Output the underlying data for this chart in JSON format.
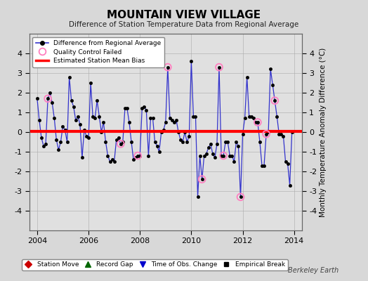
{
  "title": "MOUNTAIN VIEW VILLAGE",
  "subtitle": "Difference of Station Temperature Data from Regional Average",
  "ylabel": "Monthly Temperature Anomaly Difference (°C)",
  "credit": "Berkeley Earth",
  "xlim": [
    2003.7,
    2014.3
  ],
  "ylim": [
    -5,
    5
  ],
  "yticks": [
    -4,
    -3,
    -2,
    -1,
    0,
    1,
    2,
    3,
    4
  ],
  "xticks": [
    2004,
    2006,
    2008,
    2010,
    2012,
    2014
  ],
  "background_color": "#d8d8d8",
  "plot_bg_color": "#e0e0e0",
  "line_color": "#3333cc",
  "marker_color": "#000000",
  "bias_color": "#ff0000",
  "bias_value": 0.05,
  "qc_failed_color": "#ff80c0",
  "data": [
    [
      2004.0,
      1.7
    ],
    [
      2004.083,
      0.6
    ],
    [
      2004.167,
      -0.3
    ],
    [
      2004.25,
      -0.7
    ],
    [
      2004.333,
      -0.6
    ],
    [
      2004.417,
      1.7
    ],
    [
      2004.5,
      2.0
    ],
    [
      2004.583,
      1.5
    ],
    [
      2004.667,
      0.7
    ],
    [
      2004.75,
      -0.4
    ],
    [
      2004.833,
      -0.9
    ],
    [
      2004.917,
      -0.5
    ],
    [
      2005.0,
      0.3
    ],
    [
      2005.083,
      0.1
    ],
    [
      2005.167,
      -0.5
    ],
    [
      2005.25,
      2.8
    ],
    [
      2005.333,
      1.6
    ],
    [
      2005.417,
      1.3
    ],
    [
      2005.5,
      0.6
    ],
    [
      2005.583,
      0.8
    ],
    [
      2005.667,
      0.4
    ],
    [
      2005.75,
      -1.3
    ],
    [
      2005.833,
      0.1
    ],
    [
      2005.917,
      -0.2
    ],
    [
      2006.0,
      -0.3
    ],
    [
      2006.083,
      2.5
    ],
    [
      2006.167,
      0.8
    ],
    [
      2006.25,
      0.7
    ],
    [
      2006.333,
      1.6
    ],
    [
      2006.417,
      0.8
    ],
    [
      2006.5,
      0.0
    ],
    [
      2006.583,
      0.5
    ],
    [
      2006.667,
      -0.5
    ],
    [
      2006.75,
      -1.2
    ],
    [
      2006.833,
      -1.5
    ],
    [
      2006.917,
      -1.4
    ],
    [
      2007.0,
      -1.5
    ],
    [
      2007.083,
      -0.4
    ],
    [
      2007.167,
      -0.3
    ],
    [
      2007.25,
      -0.6
    ],
    [
      2007.333,
      -0.5
    ],
    [
      2007.417,
      1.2
    ],
    [
      2007.5,
      1.2
    ],
    [
      2007.583,
      0.5
    ],
    [
      2007.667,
      -0.5
    ],
    [
      2007.75,
      -1.4
    ],
    [
      2007.833,
      -1.3
    ],
    [
      2007.917,
      -1.2
    ],
    [
      2008.0,
      -1.2
    ],
    [
      2008.083,
      1.2
    ],
    [
      2008.167,
      1.3
    ],
    [
      2008.25,
      1.1
    ],
    [
      2008.333,
      -1.2
    ],
    [
      2008.417,
      0.7
    ],
    [
      2008.5,
      0.7
    ],
    [
      2008.583,
      -0.5
    ],
    [
      2008.667,
      -0.7
    ],
    [
      2008.75,
      -1.0
    ],
    [
      2008.833,
      0.0
    ],
    [
      2008.917,
      0.1
    ],
    [
      2009.0,
      0.5
    ],
    [
      2009.083,
      3.3
    ],
    [
      2009.167,
      0.7
    ],
    [
      2009.25,
      0.6
    ],
    [
      2009.333,
      0.5
    ],
    [
      2009.417,
      0.6
    ],
    [
      2009.5,
      0.0
    ],
    [
      2009.583,
      -0.4
    ],
    [
      2009.667,
      -0.5
    ],
    [
      2009.75,
      0.0
    ],
    [
      2009.833,
      -0.5
    ],
    [
      2009.917,
      -0.2
    ],
    [
      2010.0,
      3.6
    ],
    [
      2010.083,
      0.8
    ],
    [
      2010.167,
      0.8
    ],
    [
      2010.25,
      -3.3
    ],
    [
      2010.333,
      -1.2
    ],
    [
      2010.417,
      -2.4
    ],
    [
      2010.5,
      -1.2
    ],
    [
      2010.583,
      -1.1
    ],
    [
      2010.667,
      -0.8
    ],
    [
      2010.75,
      -0.6
    ],
    [
      2010.833,
      -1.1
    ],
    [
      2010.917,
      -1.3
    ],
    [
      2011.0,
      -0.6
    ],
    [
      2011.083,
      3.3
    ],
    [
      2011.167,
      -1.2
    ],
    [
      2011.25,
      -1.2
    ],
    [
      2011.333,
      -0.5
    ],
    [
      2011.417,
      -0.5
    ],
    [
      2011.5,
      -1.2
    ],
    [
      2011.583,
      -1.2
    ],
    [
      2011.667,
      -1.5
    ],
    [
      2011.75,
      -0.5
    ],
    [
      2011.833,
      -0.7
    ],
    [
      2011.917,
      -3.3
    ],
    [
      2012.0,
      -0.1
    ],
    [
      2012.083,
      0.7
    ],
    [
      2012.167,
      2.8
    ],
    [
      2012.25,
      0.8
    ],
    [
      2012.333,
      0.8
    ],
    [
      2012.417,
      0.7
    ],
    [
      2012.5,
      0.5
    ],
    [
      2012.583,
      0.5
    ],
    [
      2012.667,
      -0.5
    ],
    [
      2012.75,
      -1.7
    ],
    [
      2012.833,
      -1.7
    ],
    [
      2012.917,
      -0.1
    ],
    [
      2013.0,
      0.0
    ],
    [
      2013.083,
      3.2
    ],
    [
      2013.167,
      2.4
    ],
    [
      2013.25,
      1.6
    ],
    [
      2013.333,
      0.8
    ],
    [
      2013.417,
      -0.1
    ],
    [
      2013.5,
      -0.1
    ],
    [
      2013.583,
      -0.2
    ],
    [
      2013.667,
      -1.5
    ],
    [
      2013.75,
      -1.6
    ],
    [
      2013.833,
      -2.7
    ],
    [
      2013.917,
      0.0
    ]
  ],
  "qc_points": [
    [
      2004.417,
      1.7
    ],
    [
      2007.25,
      -0.6
    ],
    [
      2007.917,
      -1.2
    ],
    [
      2009.083,
      3.3
    ],
    [
      2010.417,
      -2.4
    ],
    [
      2011.083,
      3.3
    ],
    [
      2011.25,
      -1.2
    ],
    [
      2011.917,
      -3.3
    ],
    [
      2012.583,
      0.5
    ],
    [
      2012.917,
      -0.1
    ],
    [
      2013.25,
      1.6
    ]
  ]
}
